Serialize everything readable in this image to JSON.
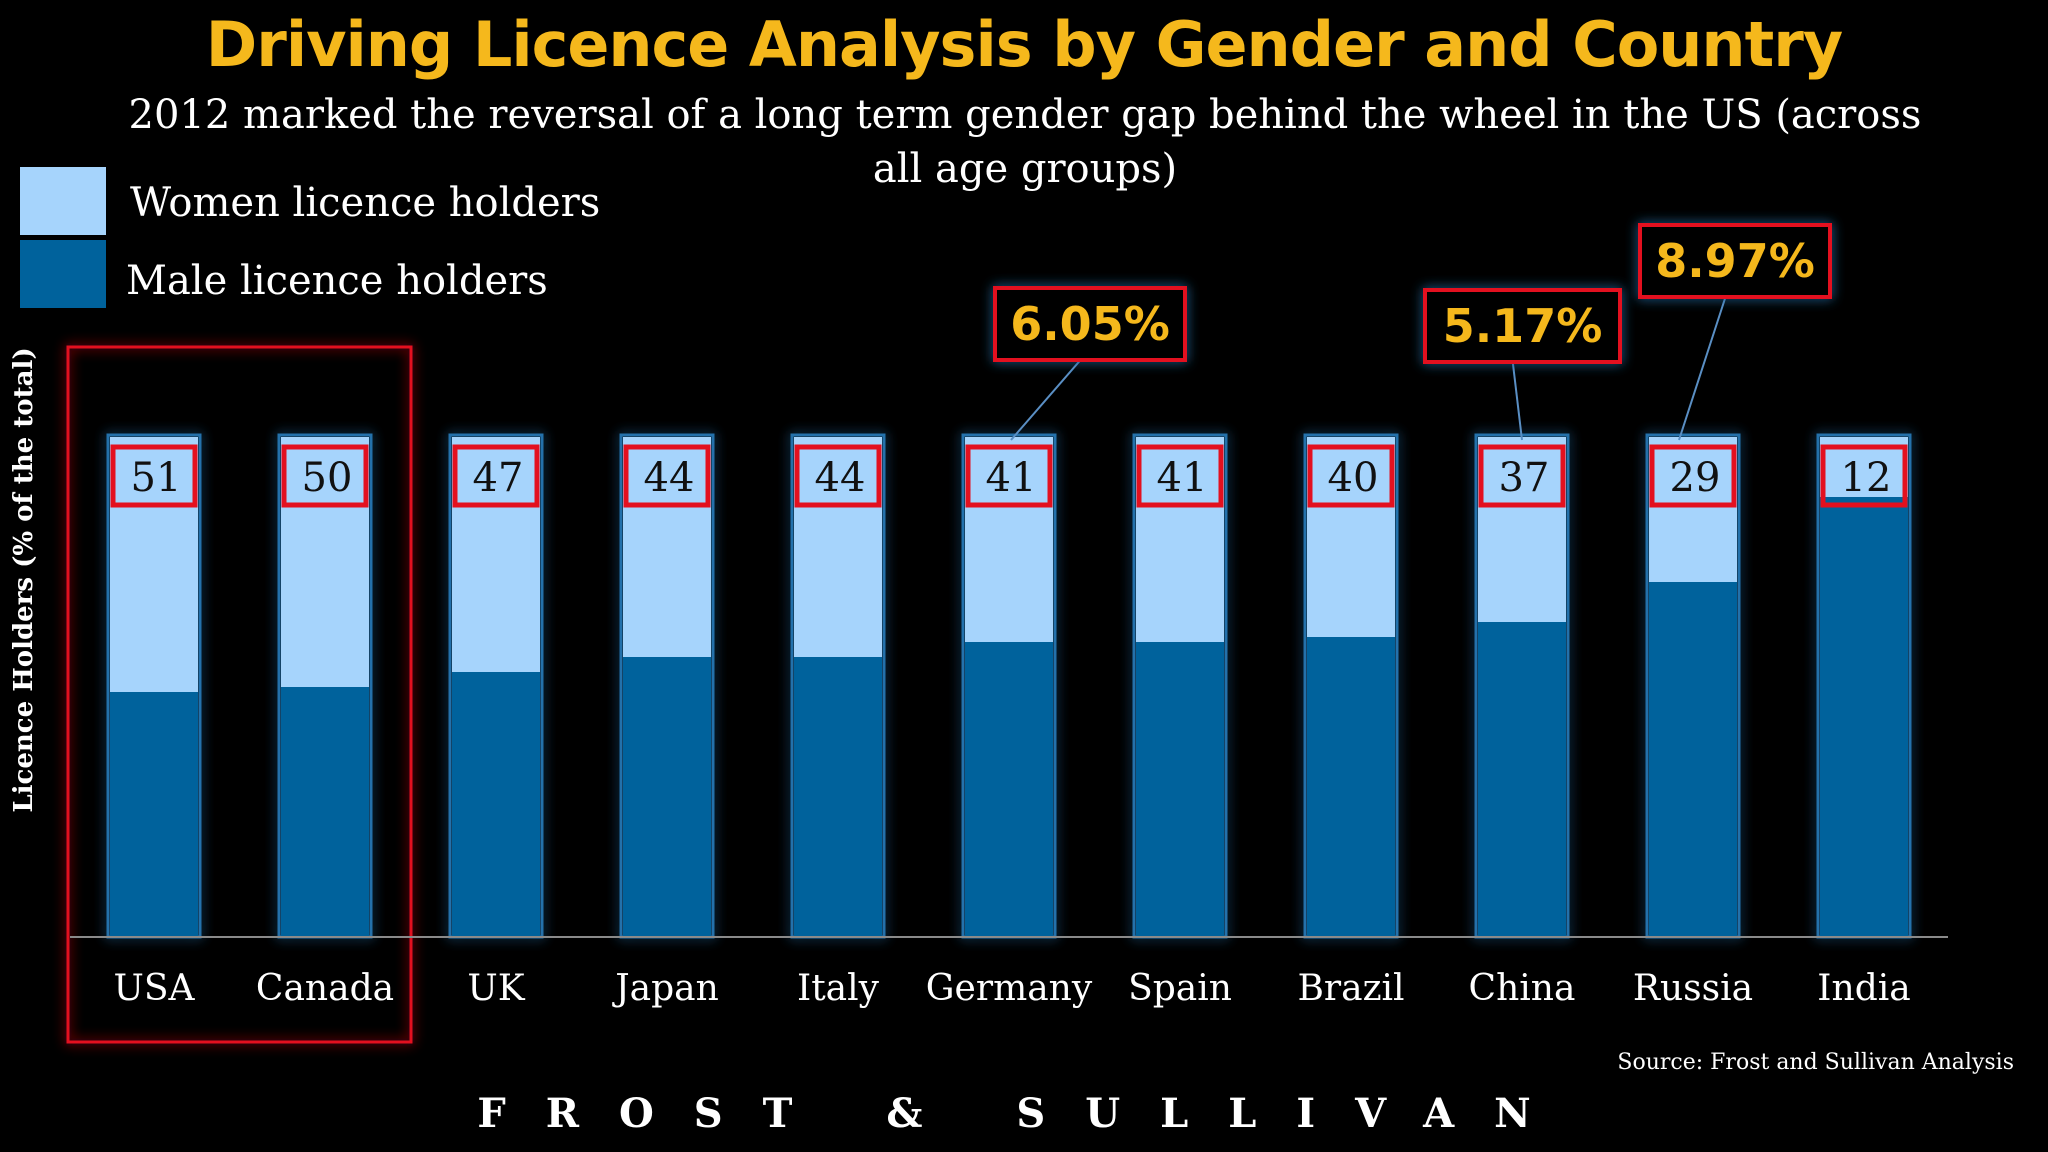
{
  "title": "Driving Licence Analysis by Gender and Country",
  "subtitle": "2012 marked the reversal of a long term gender gap behind the wheel in the US (across all age groups)",
  "legend": [
    {
      "label": "Women licence holders",
      "color": "#a6d4fc"
    },
    {
      "label": "Male licence holders",
      "color": "#00629c"
    }
  ],
  "source": "Source: Frost and Sullivan Analysis",
  "brand": "FROST & SULLIVAN",
  "chart_data": {
    "type": "bar",
    "stacked": true,
    "ylabel": "Licence Holders (% of the total)",
    "ylim": [
      0,
      100
    ],
    "categories": [
      "USA",
      "Canada",
      "UK",
      "Japan",
      "Italy",
      "Germany",
      "Spain",
      "Brazil",
      "China",
      "Russia",
      "India"
    ],
    "series": [
      {
        "name": "Male licence holders",
        "color": "#00629c",
        "values": [
          49,
          50,
          53,
          56,
          56,
          59,
          59,
          60,
          63,
          71,
          88
        ]
      },
      {
        "name": "Women licence holders",
        "color": "#a6d4fc",
        "values": [
          51,
          50,
          47,
          44,
          44,
          41,
          41,
          40,
          37,
          29,
          12
        ]
      }
    ],
    "data_labels": [
      "51",
      "50",
      "47",
      "44",
      "44",
      "41",
      "41",
      "40",
      "37",
      "29",
      "12"
    ],
    "highlight_group": [
      "USA",
      "Canada"
    ],
    "callouts": [
      {
        "category": "Germany",
        "text": "6.05%"
      },
      {
        "category": "China",
        "text": "5.17%"
      },
      {
        "category": "Russia",
        "text": "8.97%"
      }
    ],
    "colors": {
      "accent": "#f5b81c",
      "highlight": "#e3101f"
    }
  }
}
